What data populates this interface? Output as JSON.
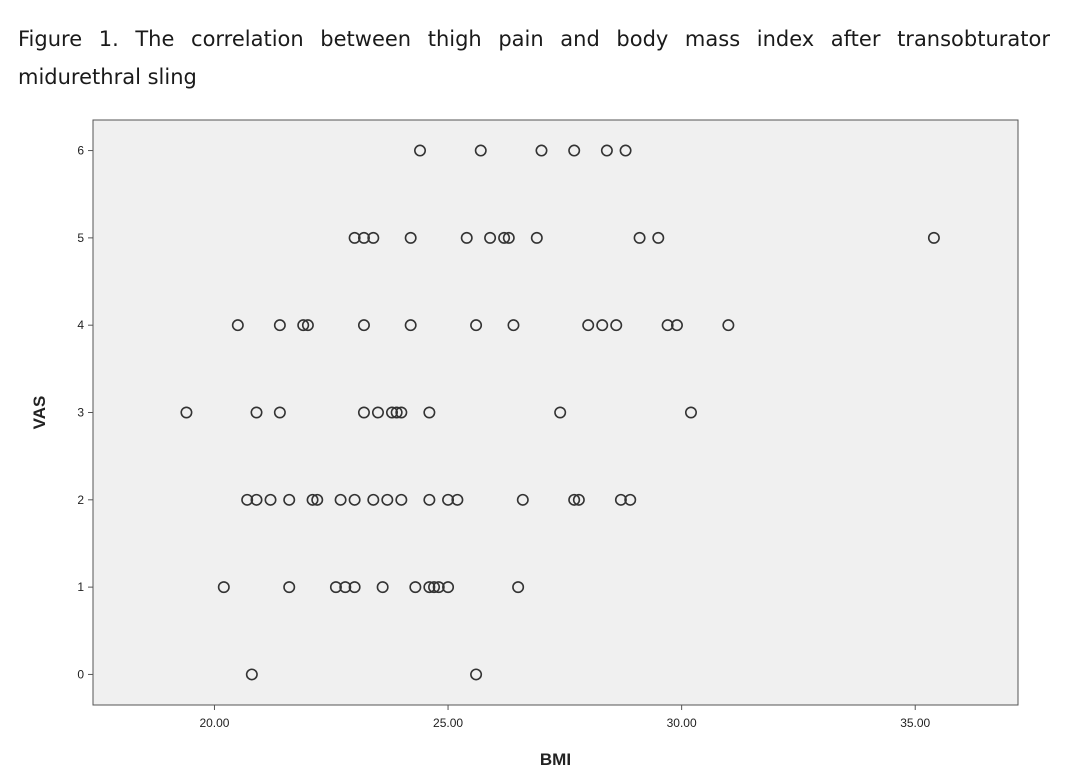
{
  "caption": "Figure 1. The correlation between thigh pain and body mass index after transobturator midurethral sling",
  "colors": {
    "plot_background": "#f0f0f0",
    "marker_stroke": "#333333",
    "axis": "#555555"
  },
  "chart_data": {
    "type": "scatter",
    "title": "",
    "xlabel": "BMI",
    "ylabel": "VAS",
    "xlim": [
      17.4,
      37.2
    ],
    "ylim": [
      -0.35,
      6.35
    ],
    "xticks": [
      20,
      25,
      30,
      35
    ],
    "xtick_labels": [
      "20.00",
      "25.00",
      "30.00",
      "35.00"
    ],
    "yticks": [
      0,
      1,
      2,
      3,
      4,
      5,
      6
    ],
    "ytick_labels": [
      "0",
      "1",
      "2",
      "3",
      "4",
      "5",
      "6"
    ],
    "grid": false,
    "marker": "open-circle",
    "points": [
      {
        "x": 20.8,
        "y": 0
      },
      {
        "x": 25.6,
        "y": 0
      },
      {
        "x": 20.2,
        "y": 1
      },
      {
        "x": 21.6,
        "y": 1
      },
      {
        "x": 22.6,
        "y": 1
      },
      {
        "x": 22.8,
        "y": 1
      },
      {
        "x": 23.0,
        "y": 1
      },
      {
        "x": 23.6,
        "y": 1
      },
      {
        "x": 24.3,
        "y": 1
      },
      {
        "x": 24.6,
        "y": 1
      },
      {
        "x": 24.7,
        "y": 1
      },
      {
        "x": 24.8,
        "y": 1
      },
      {
        "x": 25.0,
        "y": 1
      },
      {
        "x": 26.5,
        "y": 1
      },
      {
        "x": 20.7,
        "y": 2
      },
      {
        "x": 20.9,
        "y": 2
      },
      {
        "x": 21.2,
        "y": 2
      },
      {
        "x": 21.6,
        "y": 2
      },
      {
        "x": 22.1,
        "y": 2
      },
      {
        "x": 22.2,
        "y": 2
      },
      {
        "x": 22.7,
        "y": 2
      },
      {
        "x": 23.0,
        "y": 2
      },
      {
        "x": 23.4,
        "y": 2
      },
      {
        "x": 23.7,
        "y": 2
      },
      {
        "x": 24.0,
        "y": 2
      },
      {
        "x": 24.6,
        "y": 2
      },
      {
        "x": 25.0,
        "y": 2
      },
      {
        "x": 25.2,
        "y": 2
      },
      {
        "x": 26.6,
        "y": 2
      },
      {
        "x": 27.7,
        "y": 2
      },
      {
        "x": 27.8,
        "y": 2
      },
      {
        "x": 28.7,
        "y": 2
      },
      {
        "x": 28.9,
        "y": 2
      },
      {
        "x": 19.4,
        "y": 3
      },
      {
        "x": 20.9,
        "y": 3
      },
      {
        "x": 21.4,
        "y": 3
      },
      {
        "x": 23.2,
        "y": 3
      },
      {
        "x": 23.5,
        "y": 3
      },
      {
        "x": 23.8,
        "y": 3
      },
      {
        "x": 23.9,
        "y": 3
      },
      {
        "x": 24.0,
        "y": 3
      },
      {
        "x": 24.6,
        "y": 3
      },
      {
        "x": 27.4,
        "y": 3
      },
      {
        "x": 30.2,
        "y": 3
      },
      {
        "x": 20.5,
        "y": 4
      },
      {
        "x": 21.4,
        "y": 4
      },
      {
        "x": 21.9,
        "y": 4
      },
      {
        "x": 22.0,
        "y": 4
      },
      {
        "x": 23.2,
        "y": 4
      },
      {
        "x": 24.2,
        "y": 4
      },
      {
        "x": 25.6,
        "y": 4
      },
      {
        "x": 26.4,
        "y": 4
      },
      {
        "x": 28.0,
        "y": 4
      },
      {
        "x": 28.3,
        "y": 4
      },
      {
        "x": 28.6,
        "y": 4
      },
      {
        "x": 29.7,
        "y": 4
      },
      {
        "x": 29.9,
        "y": 4
      },
      {
        "x": 31.0,
        "y": 4
      },
      {
        "x": 23.0,
        "y": 5
      },
      {
        "x": 23.2,
        "y": 5
      },
      {
        "x": 23.4,
        "y": 5
      },
      {
        "x": 24.2,
        "y": 5
      },
      {
        "x": 25.4,
        "y": 5
      },
      {
        "x": 25.9,
        "y": 5
      },
      {
        "x": 26.2,
        "y": 5
      },
      {
        "x": 26.3,
        "y": 5
      },
      {
        "x": 26.9,
        "y": 5
      },
      {
        "x": 29.1,
        "y": 5
      },
      {
        "x": 29.5,
        "y": 5
      },
      {
        "x": 35.4,
        "y": 5
      },
      {
        "x": 24.4,
        "y": 6
      },
      {
        "x": 25.7,
        "y": 6
      },
      {
        "x": 27.0,
        "y": 6
      },
      {
        "x": 27.7,
        "y": 6
      },
      {
        "x": 28.4,
        "y": 6
      },
      {
        "x": 28.8,
        "y": 6
      }
    ]
  }
}
